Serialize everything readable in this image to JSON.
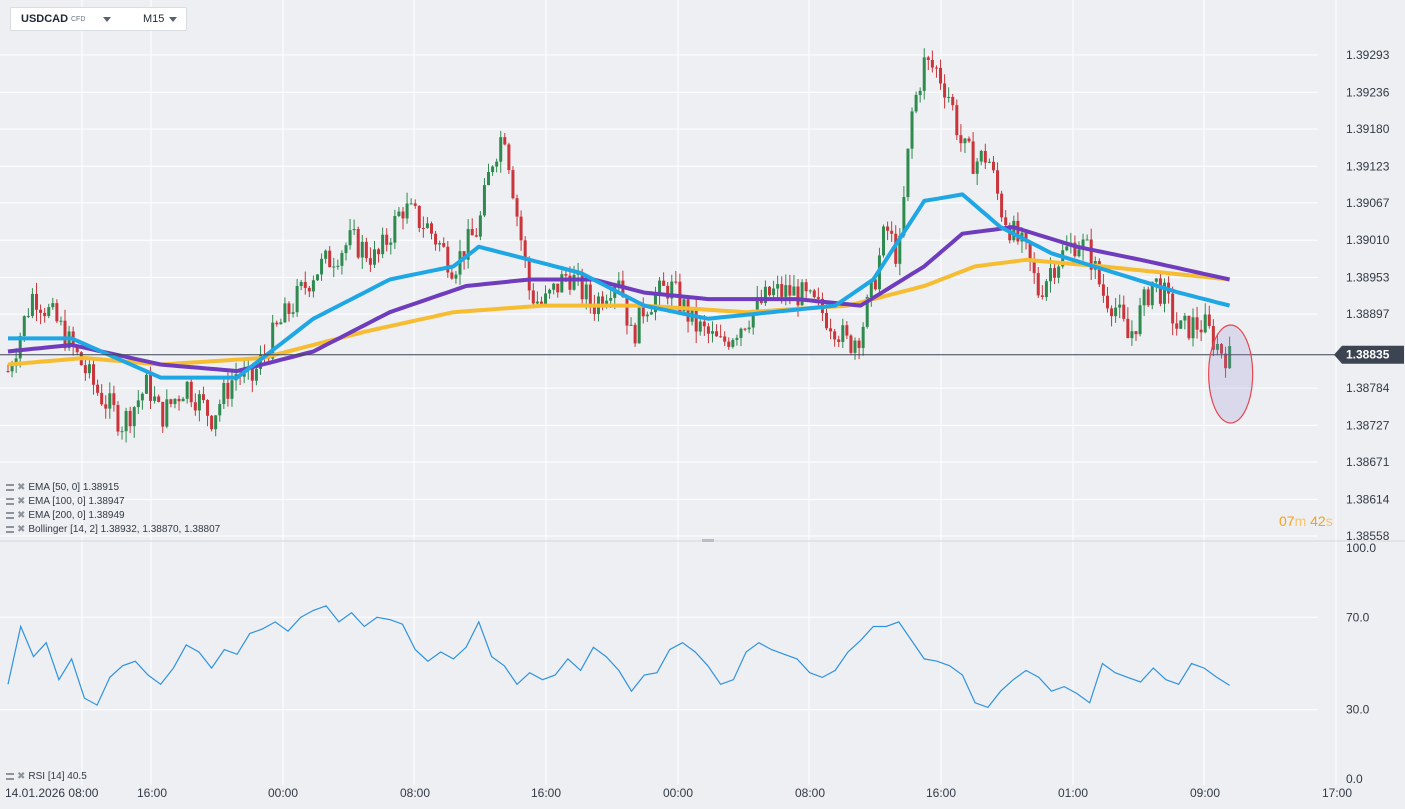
{
  "header": {
    "symbol": "USDCAD",
    "symbol_tag": "CFD",
    "timeframe": "M15"
  },
  "colors": {
    "background": "#edeff2",
    "grid": "#ffffff",
    "bull": "#2f8a4f",
    "bear": "#c9353a",
    "ema50": "#1ea7e4",
    "ema100": "#6e3cbc",
    "ema200": "#f6bd33",
    "rsi": "#2f93e0",
    "price_line": "#3c4452",
    "marker": "#e4474f"
  },
  "legend": [
    {
      "label": "EMA [50, 0] 1.38915"
    },
    {
      "label": "EMA [100, 0] 1.38947"
    },
    {
      "label": "EMA [200, 0] 1.38949"
    },
    {
      "label": "Bollinger [14, 2] 1.38932, 1.38870, 1.38807"
    }
  ],
  "rsi_legend": "RSI [14] 40.5",
  "countdown": {
    "minutes": "07",
    "m": "m",
    "seconds": "42",
    "s": "s"
  },
  "chart_data": [
    {
      "type": "line",
      "title": "",
      "price_axis_ticks": [
        "1.39293",
        "1.39236",
        "1.39180",
        "1.39123",
        "1.39067",
        "1.39010",
        "1.38953",
        "1.38897",
        "1.38835",
        "1.38784",
        "1.38727",
        "1.38671",
        "1.38614",
        "1.38558"
      ],
      "ylim": [
        1.38558,
        1.39293
      ],
      "time_axis_ticks": [
        "14.01.2026 08:00",
        "16:00",
        "00:00",
        "08:00",
        "16:00",
        "00:00",
        "08:00",
        "16:00",
        "01:00",
        "09:00",
        "17:00"
      ],
      "current_price": "1.38835",
      "price_path": [
        {
          "x": 0,
          "y": 1.3881
        },
        {
          "x": 2,
          "y": 1.3893
        },
        {
          "x": 4,
          "y": 1.3888
        },
        {
          "x": 7,
          "y": 1.3878
        },
        {
          "x": 9,
          "y": 1.3873
        },
        {
          "x": 11,
          "y": 1.3879
        },
        {
          "x": 12,
          "y": 1.3874
        },
        {
          "x": 14,
          "y": 1.3879
        },
        {
          "x": 16,
          "y": 1.3874
        },
        {
          "x": 18,
          "y": 1.3881
        },
        {
          "x": 19,
          "y": 1.3879
        },
        {
          "x": 21,
          "y": 1.3887
        },
        {
          "x": 24,
          "y": 1.3896
        },
        {
          "x": 27,
          "y": 1.3901
        },
        {
          "x": 29,
          "y": 1.3898
        },
        {
          "x": 31,
          "y": 1.3906
        },
        {
          "x": 33,
          "y": 1.3903
        },
        {
          "x": 35,
          "y": 1.3897
        },
        {
          "x": 37,
          "y": 1.3903
        },
        {
          "x": 38,
          "y": 1.3913
        },
        {
          "x": 39,
          "y": 1.3918
        },
        {
          "x": 40,
          "y": 1.3905
        },
        {
          "x": 41,
          "y": 1.3893
        },
        {
          "x": 42,
          "y": 1.3891
        },
        {
          "x": 44,
          "y": 1.3896
        },
        {
          "x": 46,
          "y": 1.3891
        },
        {
          "x": 48,
          "y": 1.3896
        },
        {
          "x": 49,
          "y": 1.3886
        },
        {
          "x": 50,
          "y": 1.3891
        },
        {
          "x": 52,
          "y": 1.3894
        },
        {
          "x": 54,
          "y": 1.3888
        },
        {
          "x": 56,
          "y": 1.3885
        },
        {
          "x": 58,
          "y": 1.3889
        },
        {
          "x": 60,
          "y": 1.3893
        },
        {
          "x": 62,
          "y": 1.3893
        },
        {
          "x": 64,
          "y": 1.389
        },
        {
          "x": 65,
          "y": 1.3888
        },
        {
          "x": 66,
          "y": 1.3885
        },
        {
          "x": 67,
          "y": 1.3887
        },
        {
          "x": 68,
          "y": 1.3894
        },
        {
          "x": 69,
          "y": 1.3903
        },
        {
          "x": 70,
          "y": 1.3898
        },
        {
          "x": 71,
          "y": 1.392
        },
        {
          "x": 72,
          "y": 1.3928
        },
        {
          "x": 73,
          "y": 1.3927
        },
        {
          "x": 74,
          "y": 1.3923
        },
        {
          "x": 75,
          "y": 1.3915
        },
        {
          "x": 76,
          "y": 1.3913
        },
        {
          "x": 77,
          "y": 1.3914
        },
        {
          "x": 78,
          "y": 1.3906
        },
        {
          "x": 79,
          "y": 1.3902
        },
        {
          "x": 80,
          "y": 1.3899
        },
        {
          "x": 81,
          "y": 1.3893
        },
        {
          "x": 82,
          "y": 1.3897
        },
        {
          "x": 83,
          "y": 1.3899
        },
        {
          "x": 84,
          "y": 1.3901
        },
        {
          "x": 85,
          "y": 1.3899
        },
        {
          "x": 86,
          "y": 1.3893
        },
        {
          "x": 87,
          "y": 1.3891
        },
        {
          "x": 88,
          "y": 1.3886
        },
        {
          "x": 89,
          "y": 1.389
        },
        {
          "x": 90,
          "y": 1.3895
        },
        {
          "x": 91,
          "y": 1.3892
        },
        {
          "x": 92,
          "y": 1.3887
        },
        {
          "x": 93,
          "y": 1.3888
        },
        {
          "x": 94,
          "y": 1.3888
        },
        {
          "x": 95,
          "y": 1.3885
        },
        {
          "x": 96,
          "y": 1.3883
        }
      ],
      "ema50": [
        {
          "x": 0,
          "y": 1.3886
        },
        {
          "x": 5,
          "y": 1.3886
        },
        {
          "x": 12,
          "y": 1.388
        },
        {
          "x": 18,
          "y": 1.388
        },
        {
          "x": 24,
          "y": 1.3889
        },
        {
          "x": 30,
          "y": 1.3895
        },
        {
          "x": 35,
          "y": 1.3897
        },
        {
          "x": 37,
          "y": 1.39
        },
        {
          "x": 41,
          "y": 1.3898
        },
        {
          "x": 45,
          "y": 1.3896
        },
        {
          "x": 50,
          "y": 1.3891
        },
        {
          "x": 55,
          "y": 1.3889
        },
        {
          "x": 60,
          "y": 1.389
        },
        {
          "x": 65,
          "y": 1.3891
        },
        {
          "x": 68,
          "y": 1.3895
        },
        {
          "x": 72,
          "y": 1.3907
        },
        {
          "x": 75,
          "y": 1.3908
        },
        {
          "x": 78,
          "y": 1.3903
        },
        {
          "x": 82,
          "y": 1.3899
        },
        {
          "x": 87,
          "y": 1.3896
        },
        {
          "x": 92,
          "y": 1.3893
        },
        {
          "x": 96,
          "y": 1.3891
        }
      ],
      "ema100": [
        {
          "x": 0,
          "y": 1.3884
        },
        {
          "x": 5,
          "y": 1.3885
        },
        {
          "x": 12,
          "y": 1.3882
        },
        {
          "x": 18,
          "y": 1.3881
        },
        {
          "x": 24,
          "y": 1.3884
        },
        {
          "x": 30,
          "y": 1.389
        },
        {
          "x": 36,
          "y": 1.3894
        },
        {
          "x": 41,
          "y": 1.3895
        },
        {
          "x": 46,
          "y": 1.3895
        },
        {
          "x": 50,
          "y": 1.3893
        },
        {
          "x": 55,
          "y": 1.3892
        },
        {
          "x": 62,
          "y": 1.3892
        },
        {
          "x": 67,
          "y": 1.3891
        },
        {
          "x": 72,
          "y": 1.3897
        },
        {
          "x": 75,
          "y": 1.3902
        },
        {
          "x": 79,
          "y": 1.3903
        },
        {
          "x": 84,
          "y": 1.39
        },
        {
          "x": 89,
          "y": 1.3898
        },
        {
          "x": 96,
          "y": 1.3895
        }
      ],
      "ema200": [
        {
          "x": 0,
          "y": 1.3882
        },
        {
          "x": 6,
          "y": 1.3883
        },
        {
          "x": 12,
          "y": 1.3882
        },
        {
          "x": 20,
          "y": 1.3883
        },
        {
          "x": 28,
          "y": 1.3887
        },
        {
          "x": 35,
          "y": 1.389
        },
        {
          "x": 42,
          "y": 1.3891
        },
        {
          "x": 50,
          "y": 1.3891
        },
        {
          "x": 58,
          "y": 1.389
        },
        {
          "x": 66,
          "y": 1.3891
        },
        {
          "x": 72,
          "y": 1.3894
        },
        {
          "x": 76,
          "y": 1.3897
        },
        {
          "x": 80,
          "y": 1.3898
        },
        {
          "x": 86,
          "y": 1.3897
        },
        {
          "x": 91,
          "y": 1.3896
        },
        {
          "x": 96,
          "y": 1.3895
        }
      ]
    },
    {
      "type": "line",
      "title": "",
      "rsi_axis_ticks": [
        "100.0",
        "70.0",
        "30.0",
        "0.0"
      ],
      "ylim": [
        0,
        100
      ],
      "rsi": [
        {
          "x": 0,
          "y": 41
        },
        {
          "x": 1,
          "y": 66
        },
        {
          "x": 2,
          "y": 53
        },
        {
          "x": 3,
          "y": 59
        },
        {
          "x": 4,
          "y": 43
        },
        {
          "x": 5,
          "y": 52
        },
        {
          "x": 6,
          "y": 35
        },
        {
          "x": 7,
          "y": 32
        },
        {
          "x": 8,
          "y": 44
        },
        {
          "x": 9,
          "y": 49
        },
        {
          "x": 10,
          "y": 51
        },
        {
          "x": 11,
          "y": 45
        },
        {
          "x": 12,
          "y": 41
        },
        {
          "x": 13,
          "y": 48
        },
        {
          "x": 14,
          "y": 58
        },
        {
          "x": 15,
          "y": 55
        },
        {
          "x": 16,
          "y": 48
        },
        {
          "x": 17,
          "y": 56
        },
        {
          "x": 18,
          "y": 54
        },
        {
          "x": 19,
          "y": 63
        },
        {
          "x": 20,
          "y": 65
        },
        {
          "x": 21,
          "y": 68
        },
        {
          "x": 22,
          "y": 64
        },
        {
          "x": 23,
          "y": 70
        },
        {
          "x": 24,
          "y": 73
        },
        {
          "x": 25,
          "y": 75
        },
        {
          "x": 26,
          "y": 68
        },
        {
          "x": 27,
          "y": 72
        },
        {
          "x": 28,
          "y": 66
        },
        {
          "x": 29,
          "y": 70
        },
        {
          "x": 30,
          "y": 69
        },
        {
          "x": 31,
          "y": 67
        },
        {
          "x": 32,
          "y": 56
        },
        {
          "x": 33,
          "y": 51
        },
        {
          "x": 34,
          "y": 55
        },
        {
          "x": 35,
          "y": 52
        },
        {
          "x": 36,
          "y": 57
        },
        {
          "x": 37,
          "y": 68
        },
        {
          "x": 38,
          "y": 53
        },
        {
          "x": 39,
          "y": 49
        },
        {
          "x": 40,
          "y": 41
        },
        {
          "x": 41,
          "y": 46
        },
        {
          "x": 42,
          "y": 43
        },
        {
          "x": 43,
          "y": 45
        },
        {
          "x": 44,
          "y": 52
        },
        {
          "x": 45,
          "y": 47
        },
        {
          "x": 46,
          "y": 57
        },
        {
          "x": 47,
          "y": 53
        },
        {
          "x": 48,
          "y": 47
        },
        {
          "x": 49,
          "y": 38
        },
        {
          "x": 50,
          "y": 45
        },
        {
          "x": 51,
          "y": 46
        },
        {
          "x": 52,
          "y": 56
        },
        {
          "x": 53,
          "y": 59
        },
        {
          "x": 54,
          "y": 55
        },
        {
          "x": 55,
          "y": 49
        },
        {
          "x": 56,
          "y": 41
        },
        {
          "x": 57,
          "y": 43
        },
        {
          "x": 58,
          "y": 55
        },
        {
          "x": 59,
          "y": 59
        },
        {
          "x": 60,
          "y": 56
        },
        {
          "x": 61,
          "y": 54
        },
        {
          "x": 62,
          "y": 52
        },
        {
          "x": 63,
          "y": 46
        },
        {
          "x": 64,
          "y": 44
        },
        {
          "x": 65,
          "y": 47
        },
        {
          "x": 66,
          "y": 55
        },
        {
          "x": 67,
          "y": 60
        },
        {
          "x": 68,
          "y": 66
        },
        {
          "x": 69,
          "y": 66
        },
        {
          "x": 70,
          "y": 68
        },
        {
          "x": 71,
          "y": 60
        },
        {
          "x": 72,
          "y": 52
        },
        {
          "x": 73,
          "y": 51
        },
        {
          "x": 74,
          "y": 49
        },
        {
          "x": 75,
          "y": 45
        },
        {
          "x": 76,
          "y": 33
        },
        {
          "x": 77,
          "y": 31
        },
        {
          "x": 78,
          "y": 38
        },
        {
          "x": 79,
          "y": 43
        },
        {
          "x": 80,
          "y": 47
        },
        {
          "x": 81,
          "y": 44
        },
        {
          "x": 82,
          "y": 38
        },
        {
          "x": 83,
          "y": 40
        },
        {
          "x": 84,
          "y": 37
        },
        {
          "x": 85,
          "y": 33
        },
        {
          "x": 86,
          "y": 50
        },
        {
          "x": 87,
          "y": 46
        },
        {
          "x": 88,
          "y": 44
        },
        {
          "x": 89,
          "y": 42
        },
        {
          "x": 90,
          "y": 48
        },
        {
          "x": 91,
          "y": 43
        },
        {
          "x": 92,
          "y": 41
        },
        {
          "x": 93,
          "y": 50
        },
        {
          "x": 94,
          "y": 48
        },
        {
          "x": 95,
          "y": 44
        },
        {
          "x": 96,
          "y": 40.5
        }
      ]
    }
  ]
}
